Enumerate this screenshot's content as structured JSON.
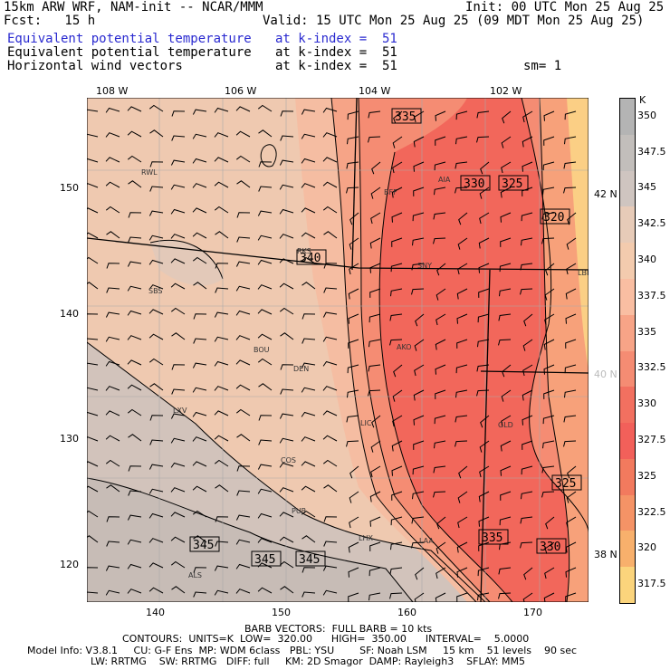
{
  "header": {
    "model": "15km ARW WRF, NAM-init -- NCAR/MMM",
    "init": "Init: 00 UTC Mon 25 Aug 25",
    "fcst": "Fcst:   15 h",
    "valid": "Valid: 15 UTC Mon 25 Aug 25 (09 MDT Mon 25 Aug 25)",
    "fields": [
      {
        "name": "Equivalent potential temperature",
        "level": "at k-index =  51",
        "highlight": true
      },
      {
        "name": "Equivalent potential temperature",
        "level": "at k-index =  51",
        "highlight": false
      },
      {
        "name": "Horizontal wind vectors",
        "level": "at k-index =  51",
        "highlight": false
      }
    ],
    "sm": "sm= 1"
  },
  "map": {
    "top_labels": [
      "108 W",
      "106 W",
      "104 W",
      "102 W"
    ],
    "left_labels": [
      "150",
      "140",
      "130",
      "120"
    ],
    "bottom_labels": [
      "140",
      "150",
      "160",
      "170"
    ],
    "right_labels": [
      "42 N",
      "40 N",
      "38 N"
    ],
    "stations": [
      "RWL",
      "BFF",
      "AIA",
      "SNY",
      "SBS",
      "BOU",
      "DEN",
      "AKO",
      "LXV",
      "LIC",
      "GLD",
      "COS",
      "PUB",
      "LHX",
      "LAA",
      "ALS",
      "LBF",
      "RKS"
    ],
    "contour_labels": [
      "335",
      "330",
      "325",
      "320",
      "340",
      "345",
      "345",
      "345",
      "335",
      "330",
      "325"
    ]
  },
  "colorbar": {
    "unit": "K",
    "labels": [
      "350",
      "347.5",
      "345",
      "342.5",
      "340",
      "337.5",
      "335",
      "332.5",
      "330",
      "327.5",
      "325",
      "322.5",
      "320",
      "317.5"
    ],
    "colors": [
      "#b4b4b4",
      "#c2bebb",
      "#cfc5c0",
      "#e7cbb8",
      "#f3cbae",
      "#f9bea2",
      "#f7a487",
      "#f58c73",
      "#f27060",
      "#f2605a",
      "#f27a5e",
      "#f59366",
      "#f8b06c",
      "#fbd47c"
    ]
  },
  "footer": {
    "barbs": "BARB VECTORS:  FULL BARB = 10 kts",
    "contours": "CONTOURS:  UNITS=K  LOW=  320.00      HIGH=  350.00      INTERVAL=    5.0000",
    "model_info": "Model Info: V3.8.1     CU: G-F Ens  MP: WDM 6class   PBL: YSU        SF: Noah LSM     15 km    51 levels    90 sec",
    "physics": "LW: RRTMG    SW: RRTMG   DIFF: full     KM: 2D Smagor  DAMP: Rayleigh3    SFLAY: MM5"
  }
}
